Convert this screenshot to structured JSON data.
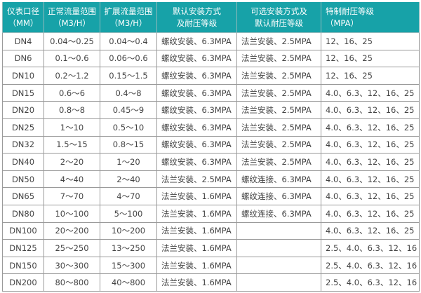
{
  "colors": {
    "header_bg": "#17a2a8",
    "header_text": "#ffffff",
    "border": "#9a9a9a",
    "text": "#444444"
  },
  "headers": [
    [
      "仪表口径",
      "（MM）"
    ],
    [
      "正常流量范围",
      "（M3/H）"
    ],
    [
      "扩展流量范围",
      "（M3/H）"
    ],
    [
      "默认安装方式",
      "及耐压等级"
    ],
    [
      "可选安装方式及",
      "默认耐压等级"
    ],
    [
      "特制耐压等级",
      "（MPA）"
    ]
  ],
  "rows": [
    [
      "DN4",
      "0.04～0.25",
      "0.04～0.4",
      "螺纹安装、6.3MPA",
      "法兰安装、2.5MPA",
      "12、16、25"
    ],
    [
      "DN6",
      "0.1～0.6",
      "0.06～0.6",
      "螺纹安装、6.3MPA",
      "法兰安装、2.5MPA",
      "12、16、25"
    ],
    [
      "DN10",
      "0.2～1.2",
      "0.15～1.5",
      "螺纹安装、6.3MPA",
      "法兰安装、2.5MPA",
      "12、16、25"
    ],
    [
      "DN15",
      "0.6～6",
      "0.4～8",
      "螺纹安装、6.3MPA",
      "法兰安装、2.5MPA",
      "4.0、6.3、12、16、25"
    ],
    [
      "DN20",
      "0.8～8",
      "0.45～9",
      "螺纹安装、6.3MPA",
      "法兰安装、2.5MPA",
      "4.0、6.3、12、16、25"
    ],
    [
      "DN25",
      "1～10",
      "0.5～10",
      "螺纹安装、6.3MPA",
      "法兰安装、2.5MPA",
      "4.0、6.3、12、16、25"
    ],
    [
      "DN32",
      "1.5～15",
      "0.8～15",
      "螺纹安装、6.3MPA",
      "法兰安装、2.5MPA",
      "4.0、6.3、12、16、25"
    ],
    [
      "DN40",
      "2～20",
      "1～20",
      "螺纹安装、6.3MPA",
      "法兰安装、2.5MPA",
      "4.0、6.3、12、16、25"
    ],
    [
      "DN50",
      "4～40",
      "2～40",
      "法兰安装、2.5MPA",
      "螺纹连接、6.3MPA",
      "4.0、6.3、12、16、25"
    ],
    [
      "DN65",
      "7～70",
      "4～70",
      "法兰安装、1.6MPA",
      "螺纹连接、6.3MPA",
      "4.0、6.3、12、16、25"
    ],
    [
      "DN80",
      "10～100",
      "5～100",
      "法兰安装、1.6MPA",
      "螺纹连接、6.3MPA",
      "4.0、6.3、12、16、25"
    ],
    [
      "DN100",
      "20～200",
      "10～200",
      "法兰安装、1.6MPA",
      "",
      "4.0、6.3、12、16、25"
    ],
    [
      "DN125",
      "25～250",
      "13～250",
      "法兰安装、1.6MPA",
      "",
      "2.5、4.0、6.3、12、16"
    ],
    [
      "DN150",
      "30～300",
      "15～300",
      "法兰安装、1.6MPA",
      "",
      "2.5、4.0、6.3、12、16"
    ],
    [
      "DN200",
      "80～800",
      "40～800",
      "法兰安装、1.6MPA",
      "",
      "2.5、4.0、6.3、12、16"
    ]
  ]
}
